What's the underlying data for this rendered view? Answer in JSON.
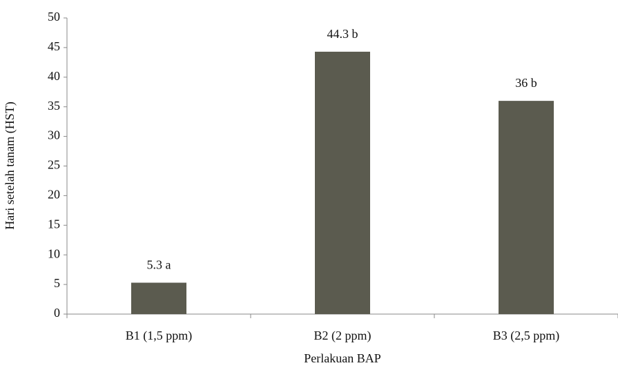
{
  "chart_data": {
    "type": "bar",
    "x_label": "Perlakuan BAP",
    "y_label": "Hari setelah tanam (HST)",
    "categories": [
      "B1 (1,5 ppm)",
      "B2 (2 ppm)",
      "B3 (2,5 ppm)"
    ],
    "values": [
      5.3,
      44.3,
      36
    ],
    "value_labels": [
      "5.3 a",
      "44.3 b",
      "36 b"
    ],
    "color": "#5b5b4f",
    "ylim": [
      0,
      50
    ],
    "yticks": [
      0,
      5,
      10,
      15,
      20,
      25,
      30,
      35,
      40,
      45,
      50
    ],
    "grid": false
  }
}
